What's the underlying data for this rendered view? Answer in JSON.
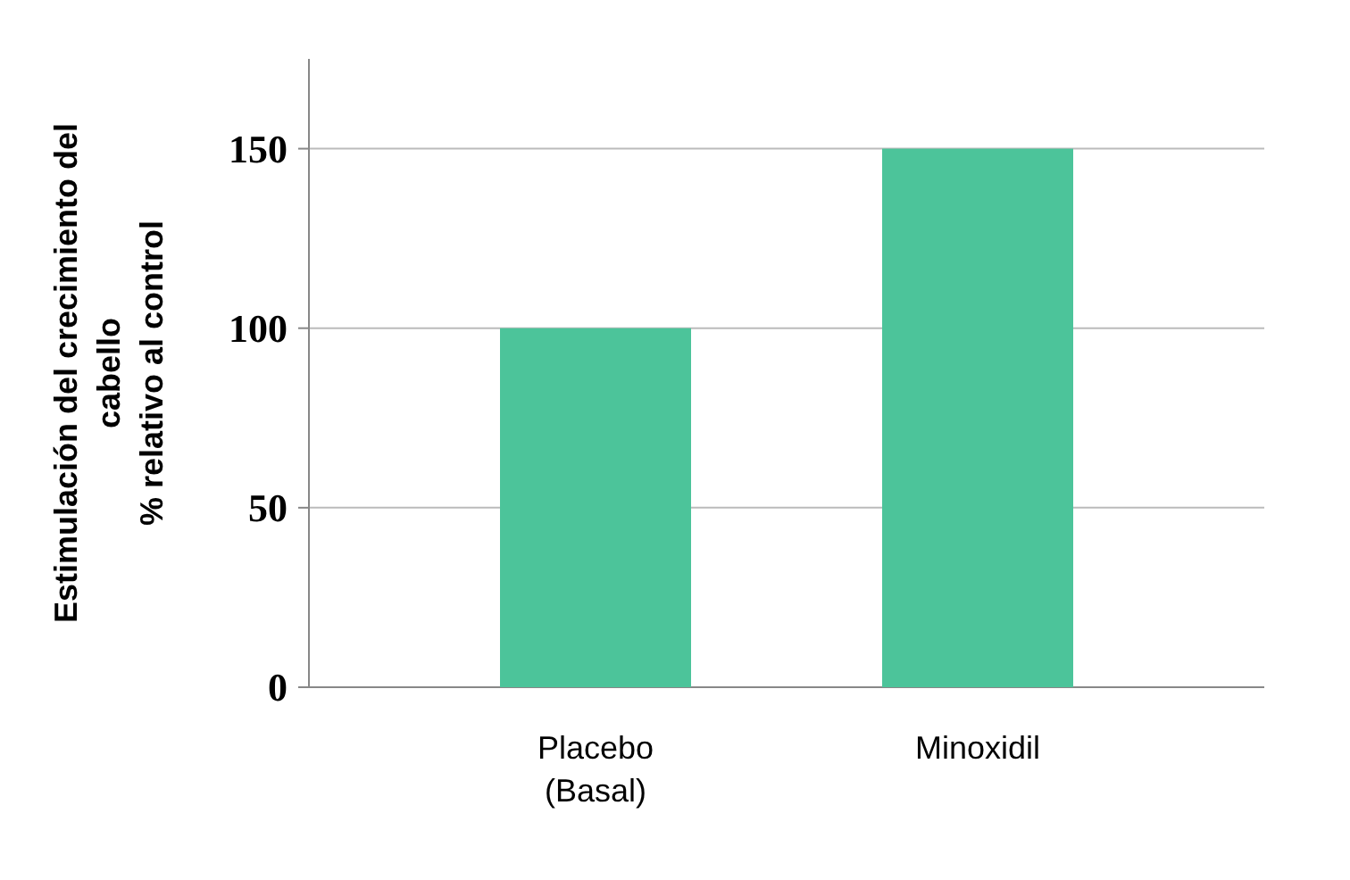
{
  "chart_data": {
    "type": "bar",
    "ylabel": "Estimulación del crecimiento del\ncabello\n% relativo al control",
    "categories": [
      "Placebo\n(Basal)",
      "Minoxidil"
    ],
    "values": [
      100,
      150
    ],
    "color": "#4cc49a",
    "ylim": [
      0,
      175
    ],
    "yticks": [
      0,
      50,
      100,
      150
    ],
    "grid": "y"
  }
}
